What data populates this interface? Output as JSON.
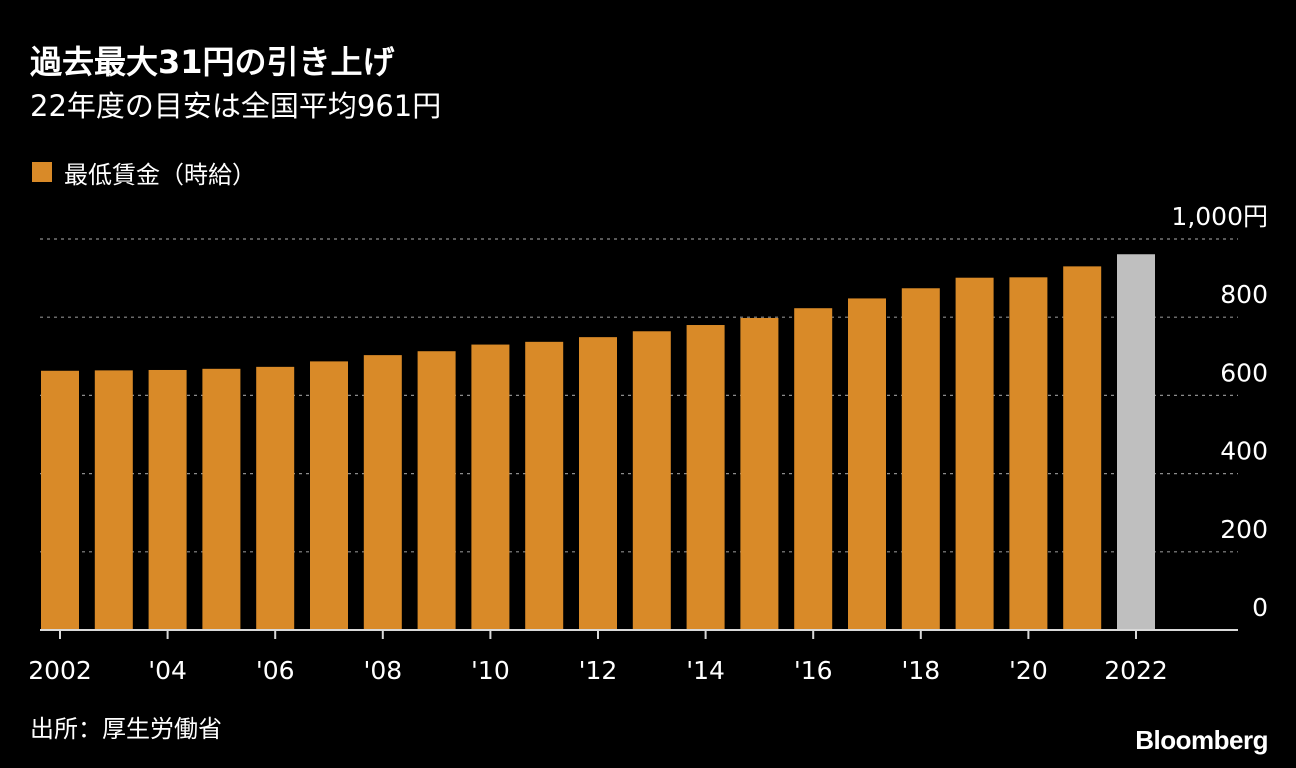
{
  "header": {
    "title": "過去最大31円の引き上げ",
    "subtitle": "22年度の目安は全国平均961円"
  },
  "legend": {
    "label": "最低賃金（時給）",
    "color": "#d98a28"
  },
  "footer": {
    "source": "出所：厚生労働省",
    "logo": "Bloomberg"
  },
  "colors": {
    "background": "#000000",
    "bar": "#d98a28",
    "highlight_bar": "#bfbfbf",
    "text": "#ffffff",
    "grid": "#8c8c8c",
    "axis": "#d9d9d9"
  },
  "chart_data": {
    "type": "bar",
    "title": "過去最大31円の引き上げ",
    "subtitle": "22年度の目安は全国平均961円",
    "xlabel": "",
    "ylabel": "",
    "categories": [
      "2002",
      "2003",
      "2004",
      "2005",
      "2006",
      "2007",
      "2008",
      "2009",
      "2010",
      "2011",
      "2012",
      "2013",
      "2014",
      "2015",
      "2016",
      "2017",
      "2018",
      "2019",
      "2020",
      "2021",
      "2022"
    ],
    "series": [
      {
        "name": "最低賃金（時給）",
        "values": [
          663,
          664,
          665,
          668,
          673,
          687,
          703,
          713,
          730,
          737,
          749,
          764,
          780,
          798,
          823,
          848,
          874,
          901,
          902,
          930,
          961
        ]
      }
    ],
    "highlight": [
      "2022"
    ],
    "x_tick_labels": [
      "2002",
      "'04",
      "'06",
      "'08",
      "'10",
      "'12",
      "'14",
      "'16",
      "'18",
      "'20",
      "2022"
    ],
    "x_tick_categories": [
      "2002",
      "2004",
      "2006",
      "2008",
      "2010",
      "2012",
      "2014",
      "2016",
      "2018",
      "2020",
      "2022"
    ],
    "y_ticks": [
      0,
      200,
      400,
      600,
      800,
      1000
    ],
    "y_tick_labels": [
      "0",
      "200",
      "400",
      "600",
      "800",
      "1,000円"
    ],
    "ylim": [
      0,
      1000
    ],
    "grid": true,
    "legend_position": "top-left"
  }
}
